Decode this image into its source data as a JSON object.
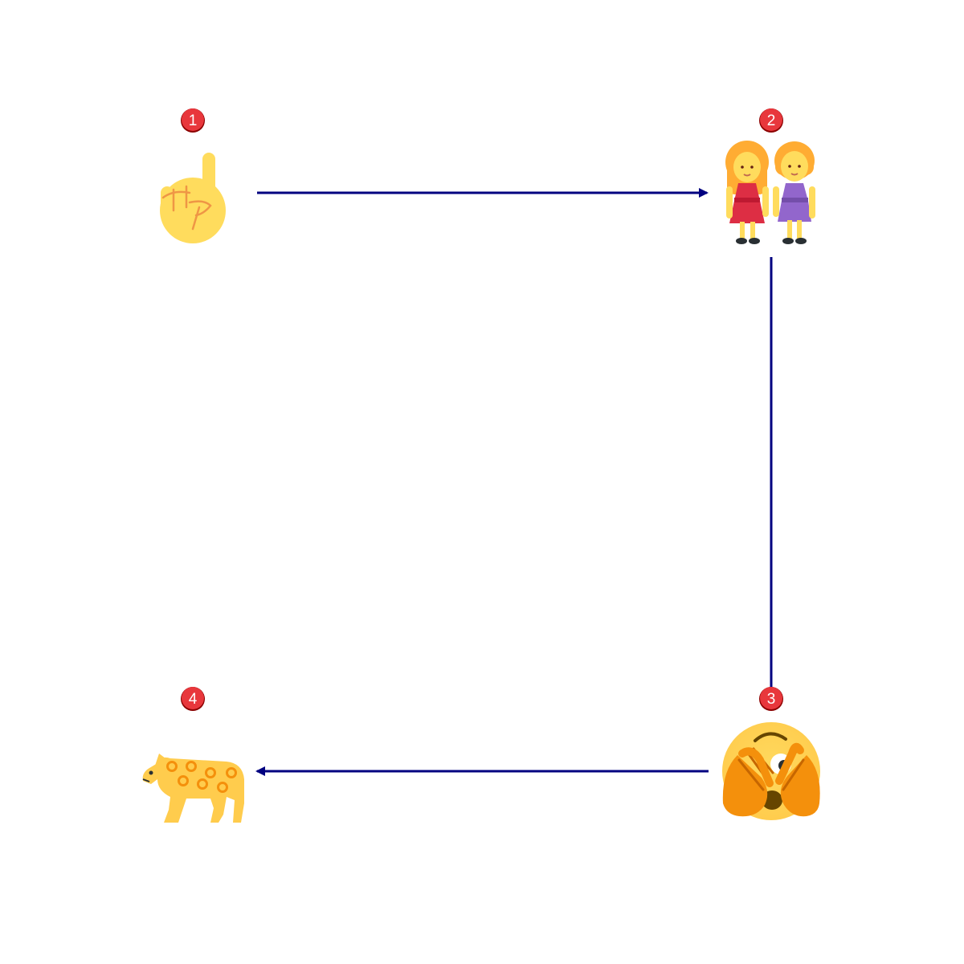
{
  "colors": {
    "arrow": "#000080",
    "badge_fill": "#e8373c",
    "badge_border": "#8b0000",
    "badge_text": "#ffffff"
  },
  "nodes": [
    {
      "badge": "1",
      "icon": "index-pointing-up-icon"
    },
    {
      "badge": "2",
      "icon": "two-women-holding-hands-icon"
    },
    {
      "badge": "3",
      "icon": "face-with-peeking-eye-icon"
    },
    {
      "badge": "4",
      "icon": "leopard-icon"
    }
  ],
  "edges": [
    {
      "from": "1",
      "to": "2"
    },
    {
      "from": "2",
      "to": "3"
    },
    {
      "from": "3",
      "to": "4"
    }
  ]
}
